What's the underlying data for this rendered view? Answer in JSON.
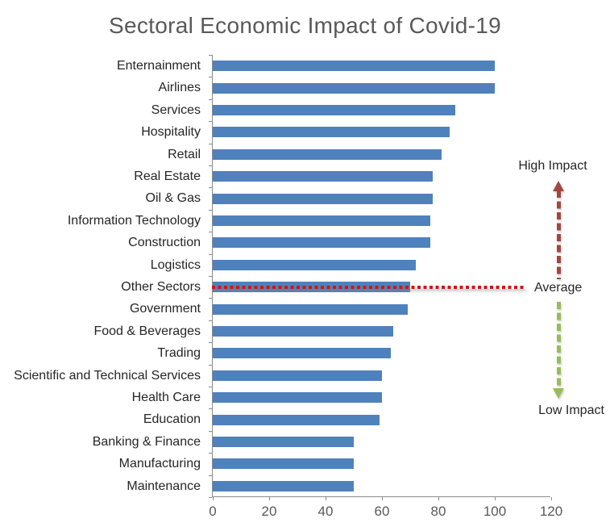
{
  "title": "Sectoral Economic Impact of Covid-19",
  "chart_data": {
    "type": "bar",
    "orientation": "horizontal",
    "title": "Sectoral Economic Impact of Covid-19",
    "categories": [
      "Enternainment",
      "Airlines",
      "Services",
      "Hospitality",
      "Retail",
      "Real Estate",
      "Oil & Gas",
      "Information Technology",
      "Construction",
      "Logistics",
      "Other Sectors",
      "Government",
      "Food & Beverages",
      "Trading",
      "Scientific and Technical Services",
      "Health Care",
      "Education",
      "Banking & Finance",
      "Manufacturing",
      "Maintenance"
    ],
    "values": [
      100,
      100,
      86,
      84,
      81,
      78,
      78,
      77,
      77,
      72,
      70,
      69,
      64,
      63,
      60,
      60,
      59,
      50,
      50,
      50
    ],
    "xlim": [
      0,
      120
    ],
    "x_ticks": [
      0,
      20,
      40,
      60,
      80,
      100,
      120
    ],
    "grid": false,
    "legend": false,
    "bar_color": "#4F81BD",
    "axis_color": "#8C8C8C",
    "title_color": "#595959",
    "annotations": {
      "high_impact_label": "High Impact",
      "average_label": "Average",
      "low_impact_label": "Low Impact",
      "average_line_row": "Other Sectors",
      "average_line_color": "#D01515",
      "high_arrow_color": "#A4463F",
      "low_arrow_color": "#9BBB59"
    }
  }
}
